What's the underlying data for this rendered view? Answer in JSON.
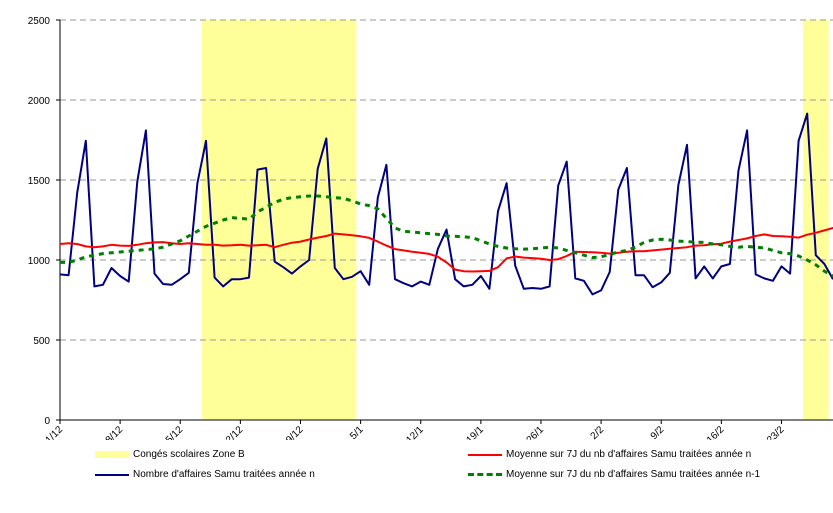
{
  "chart_data": {
    "type": "line",
    "title": "",
    "xlabel": "",
    "ylabel": "",
    "ylim": [
      0,
      2500
    ],
    "yticks": [
      0,
      500,
      1000,
      1500,
      2000,
      2500
    ],
    "grid": true,
    "legend_position": "bottom",
    "x_tick_labels": [
      "1/12",
      "8/12",
      "15/12",
      "22/12",
      "29/12",
      "5/1",
      "12/1",
      "19/1",
      "26/1",
      "2/2",
      "9/2",
      "16/2",
      "23/2"
    ],
    "shaded_periods": {
      "name": "Congés scolaires Zone B",
      "color": "#ffff99",
      "ranges": [
        [
          "18/12",
          "4/1"
        ],
        [
          "26/2",
          "28/2"
        ]
      ]
    },
    "series": [
      {
        "name": "Nombre d'affaires Samu traitées année n",
        "color": "#000080",
        "style": "solid",
        "values": [
          910,
          905,
          1420,
          1745,
          835,
          845,
          950,
          900,
          865,
          1490,
          1810,
          915,
          850,
          845,
          880,
          920,
          1480,
          1745,
          890,
          835,
          880,
          880,
          890,
          1565,
          1575,
          990,
          955,
          915,
          960,
          1000,
          1570,
          1760,
          950,
          880,
          895,
          930,
          845,
          1390,
          1595,
          880,
          855,
          835,
          865,
          845,
          1070,
          1190,
          880,
          835,
          845,
          900,
          820,
          1305,
          1480,
          965,
          820,
          825,
          820,
          835,
          1465,
          1615,
          885,
          870,
          785,
          810,
          925,
          1440,
          1575,
          905,
          905,
          830,
          860,
          920,
          1470,
          1720,
          885,
          960,
          885,
          960,
          975,
          1560,
          1810,
          910,
          885,
          870,
          960,
          915,
          1745,
          1915,
          1030,
          975,
          880
        ]
      },
      {
        "name": "Moyenne sur 7J du nb d'affaires Samu traitées année n",
        "color": "#ff0000",
        "style": "solid",
        "values": [
          1100,
          1105,
          1100,
          1085,
          1080,
          1085,
          1095,
          1090,
          1088,
          1095,
          1105,
          1110,
          1112,
          1105,
          1100,
          1105,
          1100,
          1095,
          1095,
          1090,
          1092,
          1095,
          1090,
          1092,
          1095,
          1080,
          1095,
          1108,
          1115,
          1128,
          1140,
          1150,
          1165,
          1160,
          1155,
          1148,
          1138,
          1115,
          1090,
          1068,
          1060,
          1052,
          1045,
          1038,
          1020,
          985,
          940,
          930,
          928,
          930,
          932,
          955,
          1010,
          1022,
          1015,
          1012,
          1008,
          1000,
          1005,
          1025,
          1052,
          1050,
          1048,
          1045,
          1040,
          1045,
          1052,
          1055,
          1055,
          1060,
          1065,
          1070,
          1075,
          1080,
          1090,
          1092,
          1098,
          1102,
          1115,
          1125,
          1135,
          1150,
          1160,
          1150,
          1148,
          1145,
          1140,
          1158,
          1170,
          1185,
          1200,
          1200
        ]
      },
      {
        "name": "Moyenne sur 7J du nb d'affaires Samu traitées année n-1",
        "color": "#008000",
        "style": "dashed",
        "values": [
          985,
          985,
          1000,
          1020,
          1030,
          1040,
          1045,
          1050,
          1055,
          1060,
          1065,
          1070,
          1080,
          1100,
          1120,
          1150,
          1180,
          1210,
          1230,
          1250,
          1265,
          1260,
          1255,
          1300,
          1330,
          1360,
          1380,
          1390,
          1395,
          1400,
          1400,
          1395,
          1390,
          1385,
          1370,
          1350,
          1340,
          1320,
          1260,
          1200,
          1180,
          1175,
          1170,
          1165,
          1160,
          1150,
          1148,
          1145,
          1140,
          1120,
          1100,
          1085,
          1075,
          1070,
          1068,
          1070,
          1075,
          1080,
          1075,
          1060,
          1045,
          1030,
          1015,
          1020,
          1035,
          1050,
          1060,
          1080,
          1110,
          1125,
          1130,
          1125,
          1118,
          1115,
          1112,
          1110,
          1100,
          1095,
          1085,
          1080,
          1085,
          1080,
          1075,
          1060,
          1045,
          1040,
          1025,
          1000,
          970,
          930,
          900,
          880
        ]
      }
    ]
  }
}
